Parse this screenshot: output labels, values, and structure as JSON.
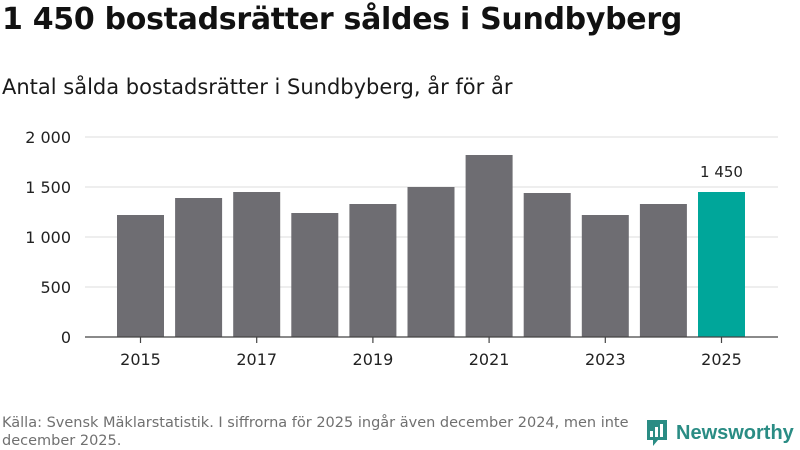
{
  "header": {
    "title": "1 450 bostadsrätter såldes i Sundbyberg",
    "subtitle": "Antal sålda bostadsrätter i Sundbyberg, år för år"
  },
  "footer": {
    "source": "Källa: Svensk Mäklarstatistik. I siffrorna för 2025 ingår även december 2024, men inte december 2025.",
    "brand": "Newsworthy"
  },
  "colors": {
    "bar": "#6e6d72",
    "highlight": "#00a69a",
    "grid": "#dddddd",
    "axis": "#444444",
    "brand": "#2a8c84"
  },
  "icons": {
    "brand_logo": "bar-chart-speech-bubble-icon"
  },
  "chart_data": {
    "type": "bar",
    "title": "Antal sålda bostadsrätter i Sundbyberg, år för år",
    "xlabel": "",
    "ylabel": "",
    "categories": [
      "2015",
      "2016",
      "2017",
      "2018",
      "2019",
      "2020",
      "2021",
      "2022",
      "2023",
      "2024",
      "2025"
    ],
    "values": [
      1220,
      1390,
      1450,
      1240,
      1330,
      1500,
      1820,
      1440,
      1220,
      1330,
      1450
    ],
    "x_tick_labels": [
      "2015",
      "2017",
      "2019",
      "2021",
      "2023",
      "2025"
    ],
    "y_ticks": [
      0,
      500,
      1000,
      1500,
      2000
    ],
    "y_tick_labels": [
      "0",
      "500",
      "1 000",
      "1 500",
      "2 000"
    ],
    "ylim": [
      0,
      2000
    ],
    "grid": true,
    "highlight_category": "2025",
    "annotation": "1 450"
  }
}
